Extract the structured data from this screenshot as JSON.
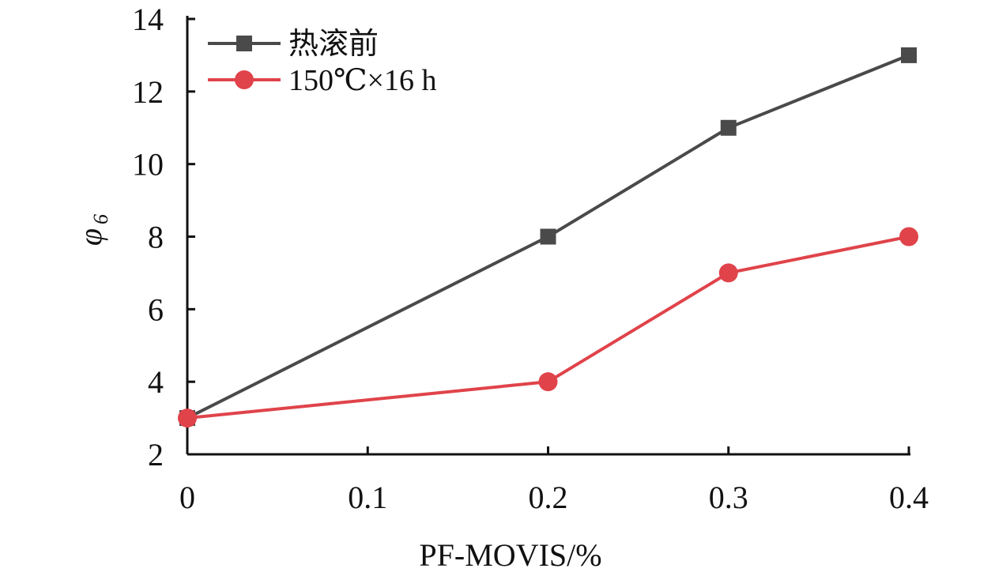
{
  "chart_data": {
    "type": "line",
    "title": "",
    "xlabel": "PF-MOVIS/%",
    "ylabel_main": "φ",
    "ylabel_sub": "6",
    "xlim": [
      0,
      0.4
    ],
    "ylim": [
      2,
      14
    ],
    "xticks": [
      0,
      0.1,
      0.2,
      0.3,
      0.4
    ],
    "xtick_labels": [
      "0",
      "0.1",
      "0.2",
      "0.3",
      "0.4"
    ],
    "yticks": [
      2,
      4,
      6,
      8,
      10,
      12,
      14
    ],
    "ytick_labels": [
      "2",
      "4",
      "6",
      "8",
      "10",
      "12",
      "14"
    ],
    "grid": false,
    "legend_position": "top-left",
    "series": [
      {
        "name": "热滚前",
        "marker": "square",
        "color": "#4a4a4a",
        "x": [
          0,
          0.2,
          0.3,
          0.4
        ],
        "y": [
          3,
          8,
          11,
          13
        ]
      },
      {
        "name": "150℃×16 h",
        "marker": "circle",
        "color": "#e0434a",
        "x": [
          0,
          0.2,
          0.3,
          0.4
        ],
        "y": [
          3,
          4,
          7,
          8
        ]
      }
    ]
  }
}
